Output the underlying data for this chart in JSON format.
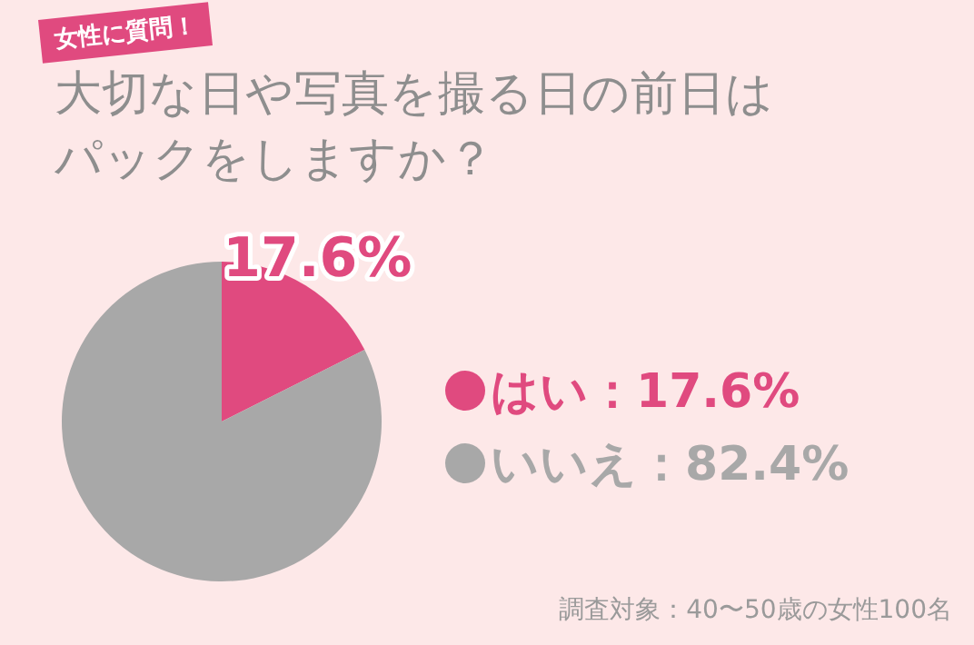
{
  "chart_data": {
    "type": "pie",
    "title": "大切な日や写真を撮る日の前日はパックをしますか？",
    "categories": [
      "はい：17.6%",
      "いいえ：82.4%"
    ],
    "values": [
      17.6,
      82.4
    ],
    "colors": [
      "#e04a7f",
      "#a8a8a8"
    ],
    "value_labels": [
      "17.6%",
      null
    ],
    "legend": "right",
    "annotations": [
      "女性に質問！",
      "調査対象：40〜50歳の女性100名"
    ]
  }
}
